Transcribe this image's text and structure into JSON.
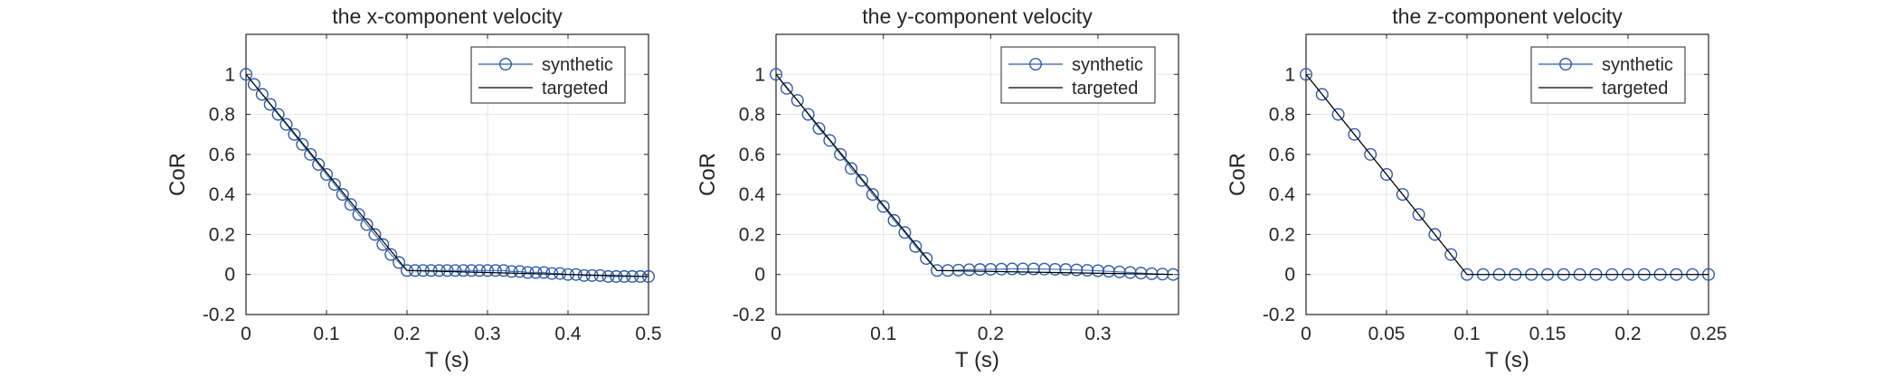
{
  "chart_data": [
    {
      "type": "line",
      "title": "the x-component velocity",
      "xlabel": "T (s)",
      "ylabel": "CoR",
      "xlim": [
        0,
        0.5
      ],
      "ylim": [
        -0.2,
        1.2
      ],
      "xticks": [
        0,
        0.1,
        0.2,
        0.3,
        0.4,
        0.5
      ],
      "xtick_labels": [
        "0",
        "0.1",
        "0.2",
        "0.3",
        "0.4",
        "0.5"
      ],
      "yticks": [
        -0.2,
        0,
        0.2,
        0.4,
        0.6,
        0.8,
        1
      ],
      "ytick_labels": [
        "-0.2",
        "0",
        "0.2",
        "0.4",
        "0.6",
        "0.8",
        "1"
      ],
      "grid": true,
      "legend_position": "top-right",
      "series": [
        {
          "name": "synthetic",
          "color": "#2E5BA8",
          "marker": "circle",
          "x": [
            0,
            0.01,
            0.02,
            0.03,
            0.04,
            0.05,
            0.06,
            0.07,
            0.08,
            0.09,
            0.1,
            0.11,
            0.12,
            0.13,
            0.14,
            0.15,
            0.16,
            0.17,
            0.18,
            0.19,
            0.2,
            0.21,
            0.22,
            0.23,
            0.24,
            0.25,
            0.26,
            0.27,
            0.28,
            0.29,
            0.3,
            0.31,
            0.32,
            0.33,
            0.34,
            0.35,
            0.36,
            0.37,
            0.38,
            0.39,
            0.4,
            0.41,
            0.42,
            0.43,
            0.44,
            0.45,
            0.46,
            0.47,
            0.48,
            0.49,
            0.5
          ],
          "y": [
            1,
            0.95,
            0.9,
            0.85,
            0.8,
            0.75,
            0.7,
            0.65,
            0.6,
            0.55,
            0.5,
            0.45,
            0.4,
            0.35,
            0.3,
            0.25,
            0.2,
            0.15,
            0.1,
            0.06,
            0.02,
            0.02,
            0.02,
            0.02,
            0.02,
            0.02,
            0.02,
            0.02,
            0.02,
            0.02,
            0.02,
            0.02,
            0.02,
            0.015,
            0.015,
            0.01,
            0.01,
            0.01,
            0.005,
            0.005,
            0.0,
            0.0,
            -0.005,
            -0.005,
            -0.005,
            -0.01,
            -0.01,
            -0.01,
            -0.01,
            -0.01,
            -0.01
          ]
        },
        {
          "name": "targeted",
          "color": "#000000",
          "marker": "none",
          "x": [
            0,
            0.2,
            0.5
          ],
          "y": [
            1,
            0.02,
            -0.01
          ]
        }
      ]
    },
    {
      "type": "line",
      "title": "the y-component velocity",
      "xlabel": "T (s)",
      "ylabel": "CoR",
      "xlim": [
        0,
        0.375
      ],
      "ylim": [
        -0.2,
        1.2
      ],
      "xticks": [
        0,
        0.1,
        0.2,
        0.3
      ],
      "xtick_labels": [
        "0",
        "0.1",
        "0.2",
        "0.3"
      ],
      "yticks": [
        -0.2,
        0,
        0.2,
        0.4,
        0.6,
        0.8,
        1
      ],
      "ytick_labels": [
        "-0.2",
        "0",
        "0.2",
        "0.4",
        "0.6",
        "0.8",
        "1"
      ],
      "grid": true,
      "legend_position": "top-right",
      "series": [
        {
          "name": "synthetic",
          "color": "#2E5BA8",
          "marker": "circle",
          "x": [
            0,
            0.01,
            0.02,
            0.03,
            0.04,
            0.05,
            0.06,
            0.07,
            0.08,
            0.09,
            0.1,
            0.11,
            0.12,
            0.13,
            0.14,
            0.15,
            0.16,
            0.17,
            0.18,
            0.19,
            0.2,
            0.21,
            0.22,
            0.23,
            0.24,
            0.25,
            0.26,
            0.27,
            0.28,
            0.29,
            0.3,
            0.31,
            0.32,
            0.33,
            0.34,
            0.35,
            0.36,
            0.37
          ],
          "y": [
            1,
            0.93,
            0.87,
            0.8,
            0.73,
            0.67,
            0.6,
            0.53,
            0.47,
            0.4,
            0.34,
            0.27,
            0.21,
            0.14,
            0.08,
            0.02,
            0.02,
            0.022,
            0.024,
            0.025,
            0.026,
            0.027,
            0.028,
            0.028,
            0.028,
            0.027,
            0.026,
            0.025,
            0.023,
            0.021,
            0.019,
            0.016,
            0.013,
            0.01,
            0.007,
            0.004,
            0.002,
            0.0
          ]
        },
        {
          "name": "targeted",
          "color": "#000000",
          "marker": "none",
          "x": [
            0,
            0.15,
            0.37
          ],
          "y": [
            1,
            0.02,
            0.0
          ]
        }
      ]
    },
    {
      "type": "line",
      "title": "the z-component velocity",
      "xlabel": "T (s)",
      "ylabel": "CoR",
      "xlim": [
        0,
        0.25
      ],
      "ylim": [
        -0.2,
        1.2
      ],
      "xticks": [
        0,
        0.05,
        0.1,
        0.15,
        0.2,
        0.25
      ],
      "xtick_labels": [
        "0",
        "0.05",
        "0.1",
        "0.15",
        "0.2",
        "0.25"
      ],
      "yticks": [
        -0.2,
        0,
        0.2,
        0.4,
        0.6,
        0.8,
        1
      ],
      "ytick_labels": [
        "-0.2",
        "0",
        "0.2",
        "0.4",
        "0.6",
        "0.8",
        "1"
      ],
      "grid": true,
      "legend_position": "top-right",
      "series": [
        {
          "name": "synthetic",
          "color": "#2E5BA8",
          "marker": "circle",
          "x": [
            0,
            0.01,
            0.02,
            0.03,
            0.04,
            0.05,
            0.06,
            0.07,
            0.08,
            0.09,
            0.1,
            0.11,
            0.12,
            0.13,
            0.14,
            0.15,
            0.16,
            0.17,
            0.18,
            0.19,
            0.2,
            0.21,
            0.22,
            0.23,
            0.24,
            0.25
          ],
          "y": [
            1,
            0.9,
            0.8,
            0.7,
            0.6,
            0.5,
            0.4,
            0.3,
            0.2,
            0.1,
            0,
            0,
            0,
            0,
            0,
            0,
            0,
            0,
            0,
            0,
            0,
            0,
            0,
            0,
            0,
            0
          ]
        },
        {
          "name": "targeted",
          "color": "#000000",
          "marker": "none",
          "x": [
            0,
            0.1,
            0.25
          ],
          "y": [
            1,
            0,
            0
          ]
        }
      ]
    }
  ]
}
